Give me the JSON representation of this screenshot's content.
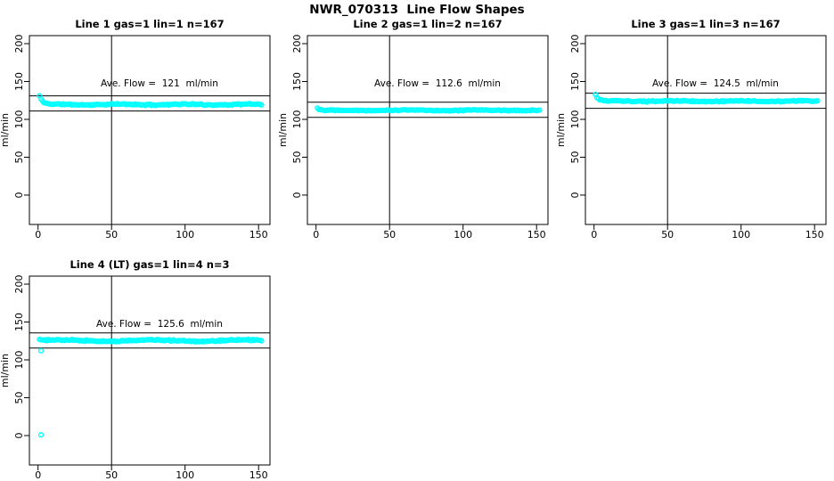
{
  "figure": {
    "title": "NWR_070313  Line Flow Shapes",
    "grid": "2 rows x 3 cols",
    "empty_cells": [
      "row2-col2",
      "row2-col3"
    ]
  },
  "colors": {
    "points": "#00ffff",
    "axis_and_lines": "#000000",
    "background": "#ffffff",
    "text": "#000000"
  },
  "axes": {
    "ylabel": "ml/min",
    "yticks": [
      0,
      50,
      100,
      150,
      200
    ],
    "xticks": [
      0,
      50,
      100,
      150
    ],
    "ylim": [
      0,
      200
    ],
    "xlim": [
      0,
      150
    ],
    "y_tick_labels_rotated": true,
    "grid": "off"
  },
  "chart_data": [
    {
      "type": "scatter",
      "title": "Line 1 gas=1 lin=1 n=167",
      "annotation": "Ave. Flow =  121  ml/min",
      "ave_flow_ml_min": 121,
      "n": 167,
      "ref_lines_y": [
        131,
        111
      ],
      "vline_x": 50,
      "points_spec": {
        "seed": 11,
        "x_start": 1,
        "x_end": 152,
        "step": 1,
        "base": 119.6,
        "start_value": 131,
        "decay": 0.5,
        "jitter": 1.0,
        "wobble_amp": 0.5,
        "wobble_period": 7,
        "outliers": []
      }
    },
    {
      "type": "scatter",
      "title": "Line 2 gas=1 lin=2 n=167",
      "annotation": "Ave. Flow =  112.6  ml/min",
      "ave_flow_ml_min": 112.6,
      "n": 167,
      "ref_lines_y": [
        122.6,
        102.6
      ],
      "vline_x": 50,
      "points_spec": {
        "seed": 22,
        "x_start": 1,
        "x_end": 152,
        "step": 1,
        "base": 112.0,
        "start_value": 115,
        "decay": 0.8,
        "jitter": 0.8,
        "wobble_amp": 0.3,
        "wobble_period": 8,
        "outliers": []
      }
    },
    {
      "type": "scatter",
      "title": "Line 3 gas=1 lin=3 n=167",
      "annotation": "Ave. Flow =  124.5  ml/min",
      "ave_flow_ml_min": 124.5,
      "n": 167,
      "ref_lines_y": [
        134.5,
        114.5
      ],
      "vline_x": 50,
      "points_spec": {
        "seed": 33,
        "x_start": 1,
        "x_end": 152,
        "step": 1,
        "base": 124.0,
        "start_value": 132.5,
        "decay": 0.55,
        "jitter": 0.9,
        "wobble_amp": 0.4,
        "wobble_period": 7,
        "outliers": []
      }
    },
    {
      "type": "scatter",
      "title": "Line 4 (LT) gas=1 lin=4 n=3",
      "annotation": "Ave. Flow =  125.6  ml/min",
      "ave_flow_ml_min": 125.6,
      "n": 3,
      "ref_lines_y": [
        135.6,
        115.6
      ],
      "vline_x": 50,
      "points_spec": {
        "seed": 44,
        "x_start": 1,
        "x_end": 152,
        "step": 1,
        "base": 125.4,
        "start_value": 127,
        "decay": 0.5,
        "jitter": 1.1,
        "wobble_amp": 0.9,
        "wobble_period": 10,
        "outliers": [
          [
            2,
            112
          ],
          [
            2,
            1
          ]
        ]
      }
    }
  ]
}
